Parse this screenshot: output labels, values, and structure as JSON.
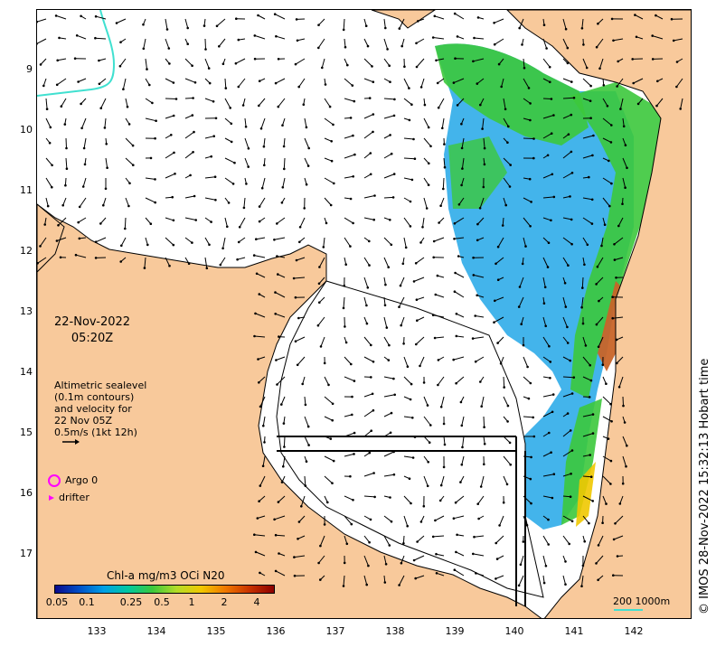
{
  "map": {
    "date": "22-Nov-2022",
    "time": "05:20Z",
    "latitude_ticks": [
      "9",
      "10",
      "11",
      "12",
      "13",
      "14",
      "15",
      "16",
      "17"
    ],
    "longitude_ticks": [
      "133",
      "134",
      "135",
      "136",
      "137",
      "138",
      "139",
      "140",
      "141",
      "142"
    ],
    "colors": {
      "land": "#f8c99b",
      "sea": "#ffffff",
      "coastline": "#000000",
      "contour": "#40e0d0",
      "arrow": "#000000",
      "marker": "#ff00ff"
    }
  },
  "altimetry": {
    "line1": "Altimetric sealevel",
    "line2": "(0.1m contours)",
    "line3": "and velocity for",
    "line4": "22 Nov 05Z",
    "line5": "0.5m/s (1kt 12h)"
  },
  "legend": {
    "argo_label": "Argo 0",
    "drifter_label": "drifter",
    "colorbar_title": "Chl-a mg/m3 OCi N20",
    "colorbar_ticks": [
      "0.05",
      "0.1",
      "0.25",
      "0.5",
      "1",
      "2",
      "4"
    ],
    "colorbar_colors": [
      "#0a0a8c",
      "#0050c8",
      "#00a0e6",
      "#00c8a0",
      "#3cc83c",
      "#b4dc28",
      "#f0c800",
      "#f07800",
      "#c83200",
      "#8c0000"
    ]
  },
  "scale": {
    "label": "200  1000m"
  },
  "credit": "© IMOS 28-Nov-2022 15:32:13 Hobart time"
}
